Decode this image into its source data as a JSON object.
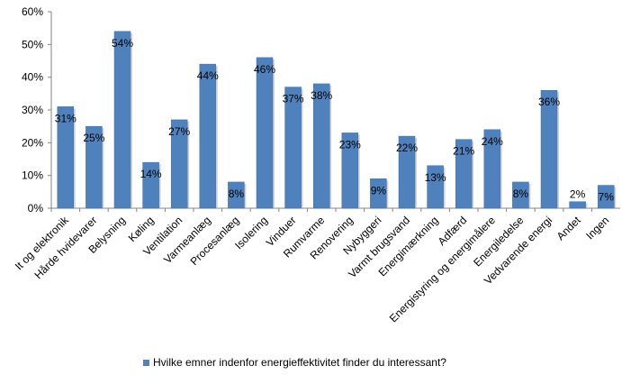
{
  "chart_data": {
    "type": "bar",
    "title": "",
    "xlabel": "",
    "ylabel": "",
    "ylim": [
      0,
      60
    ],
    "yticks": [
      "0%",
      "10%",
      "20%",
      "30%",
      "40%",
      "50%",
      "60%"
    ],
    "grid": false,
    "legend_position": "bottom",
    "color": "#4F81BD",
    "categories": [
      "It og elektronik",
      "Hårde hvidevarer",
      "Belysning",
      "Køling",
      "Ventilation",
      "Varmeanlæg",
      "Procesanlæg",
      "Isolering",
      "Vinduer",
      "Rumvarme",
      "Renovering",
      "Nybyggeri",
      "Varmt brugsvand",
      "Energimærkning",
      "Adfærd",
      "Energistyring og energimålere",
      "Energiledelse",
      "Vedvarende energi",
      "Andet",
      "Ingen"
    ],
    "series": [
      {
        "name": "Hvilke emner indenfor energieffektivitet finder du interessant?",
        "values": [
          31,
          25,
          54,
          14,
          27,
          44,
          8,
          46,
          37,
          38,
          23,
          9,
          22,
          13,
          21,
          24,
          8,
          36,
          2,
          7
        ],
        "labels": [
          "31%",
          "25%",
          "54%",
          "14%",
          "27%",
          "44%",
          "8%",
          "46%",
          "37%",
          "38%",
          "23%",
          "9%",
          "22%",
          "13%",
          "21%",
          "24%",
          "8%",
          "36%",
          "2%",
          "7%"
        ]
      }
    ]
  }
}
